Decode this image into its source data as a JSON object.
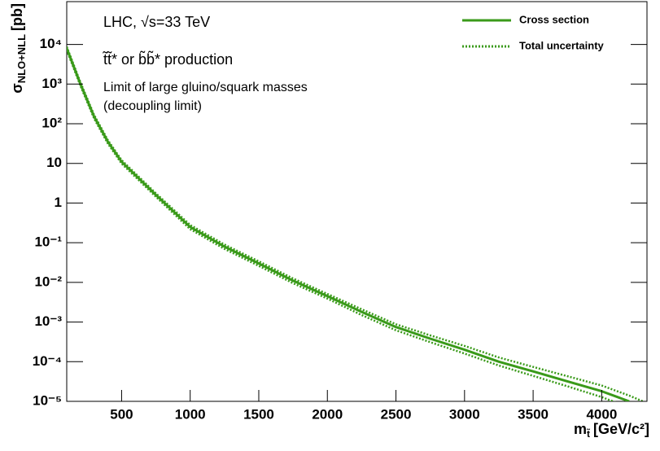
{
  "chart_data": {
    "type": "line",
    "annotations": [
      "LHC,  √s=33 TeV",
      "t̃t̃* or b̃b̃* production",
      "Limit of large gluino/squark masses",
      "(decoupling limit)"
    ],
    "xlabel": {
      "symbol": "m",
      "sub": "t̃",
      "unit": "[GeV/c²]"
    },
    "ylabel": {
      "symbol": "σ",
      "sub": "NLO+NLL",
      "unit": "[pb]"
    },
    "log_y": true,
    "x": [
      100,
      200,
      300,
      400,
      500,
      750,
      1000,
      1250,
      1500,
      1750,
      2000,
      2250,
      2500,
      2750,
      3000,
      3250,
      3500,
      3750,
      4000,
      4200,
      4300
    ],
    "series": [
      {
        "name": "Cross section",
        "color": "#3a9a1a",
        "style": "solid",
        "values": [
          8000,
          1000,
          150,
          35,
          11,
          1.6,
          0.25,
          0.08,
          0.03,
          0.011,
          0.0045,
          0.0018,
          0.00075,
          0.00038,
          0.0002,
          0.0001,
          5.7e-05,
          3.2e-05,
          1.8e-05,
          1e-05,
          null
        ]
      },
      {
        "name": "Total uncertainty",
        "color": "#3a9a1a",
        "style": "dotted",
        "upper": [
          8800,
          1100,
          165,
          38.5,
          12.1,
          1.76,
          0.28,
          0.09,
          0.034,
          0.0125,
          0.0051,
          0.0021,
          0.00088,
          0.00046,
          0.00025,
          0.000128,
          7.4e-05,
          4.3e-05,
          2.5e-05,
          1.4e-05,
          1e-05
        ],
        "lower": [
          7200,
          900,
          135,
          31.5,
          9.9,
          1.44,
          0.22,
          0.07,
          0.026,
          0.0095,
          0.0039,
          0.0015,
          0.00062,
          0.00031,
          0.00016,
          8e-05,
          4.4e-05,
          2.4e-05,
          1.28e-05,
          7e-06,
          null
        ]
      }
    ],
    "xlim": [
      100,
      4330
    ],
    "xticks": [
      500,
      1000,
      1500,
      2000,
      2500,
      3000,
      3500,
      4000
    ],
    "ylim": [
      1e-05,
      120000
    ],
    "yticks": [
      {
        "value": 1e-05,
        "label": "10⁻⁵"
      },
      {
        "value": 0.0001,
        "label": "10⁻⁴"
      },
      {
        "value": 0.001,
        "label": "10⁻³"
      },
      {
        "value": 0.01,
        "label": "10⁻²"
      },
      {
        "value": 0.1,
        "label": "10⁻¹"
      },
      1,
      10,
      {
        "value": 100,
        "label": "10²"
      },
      {
        "value": 1000,
        "label": "10³"
      },
      {
        "value": 10000,
        "label": "10⁴"
      }
    ],
    "legend": "top-right"
  }
}
